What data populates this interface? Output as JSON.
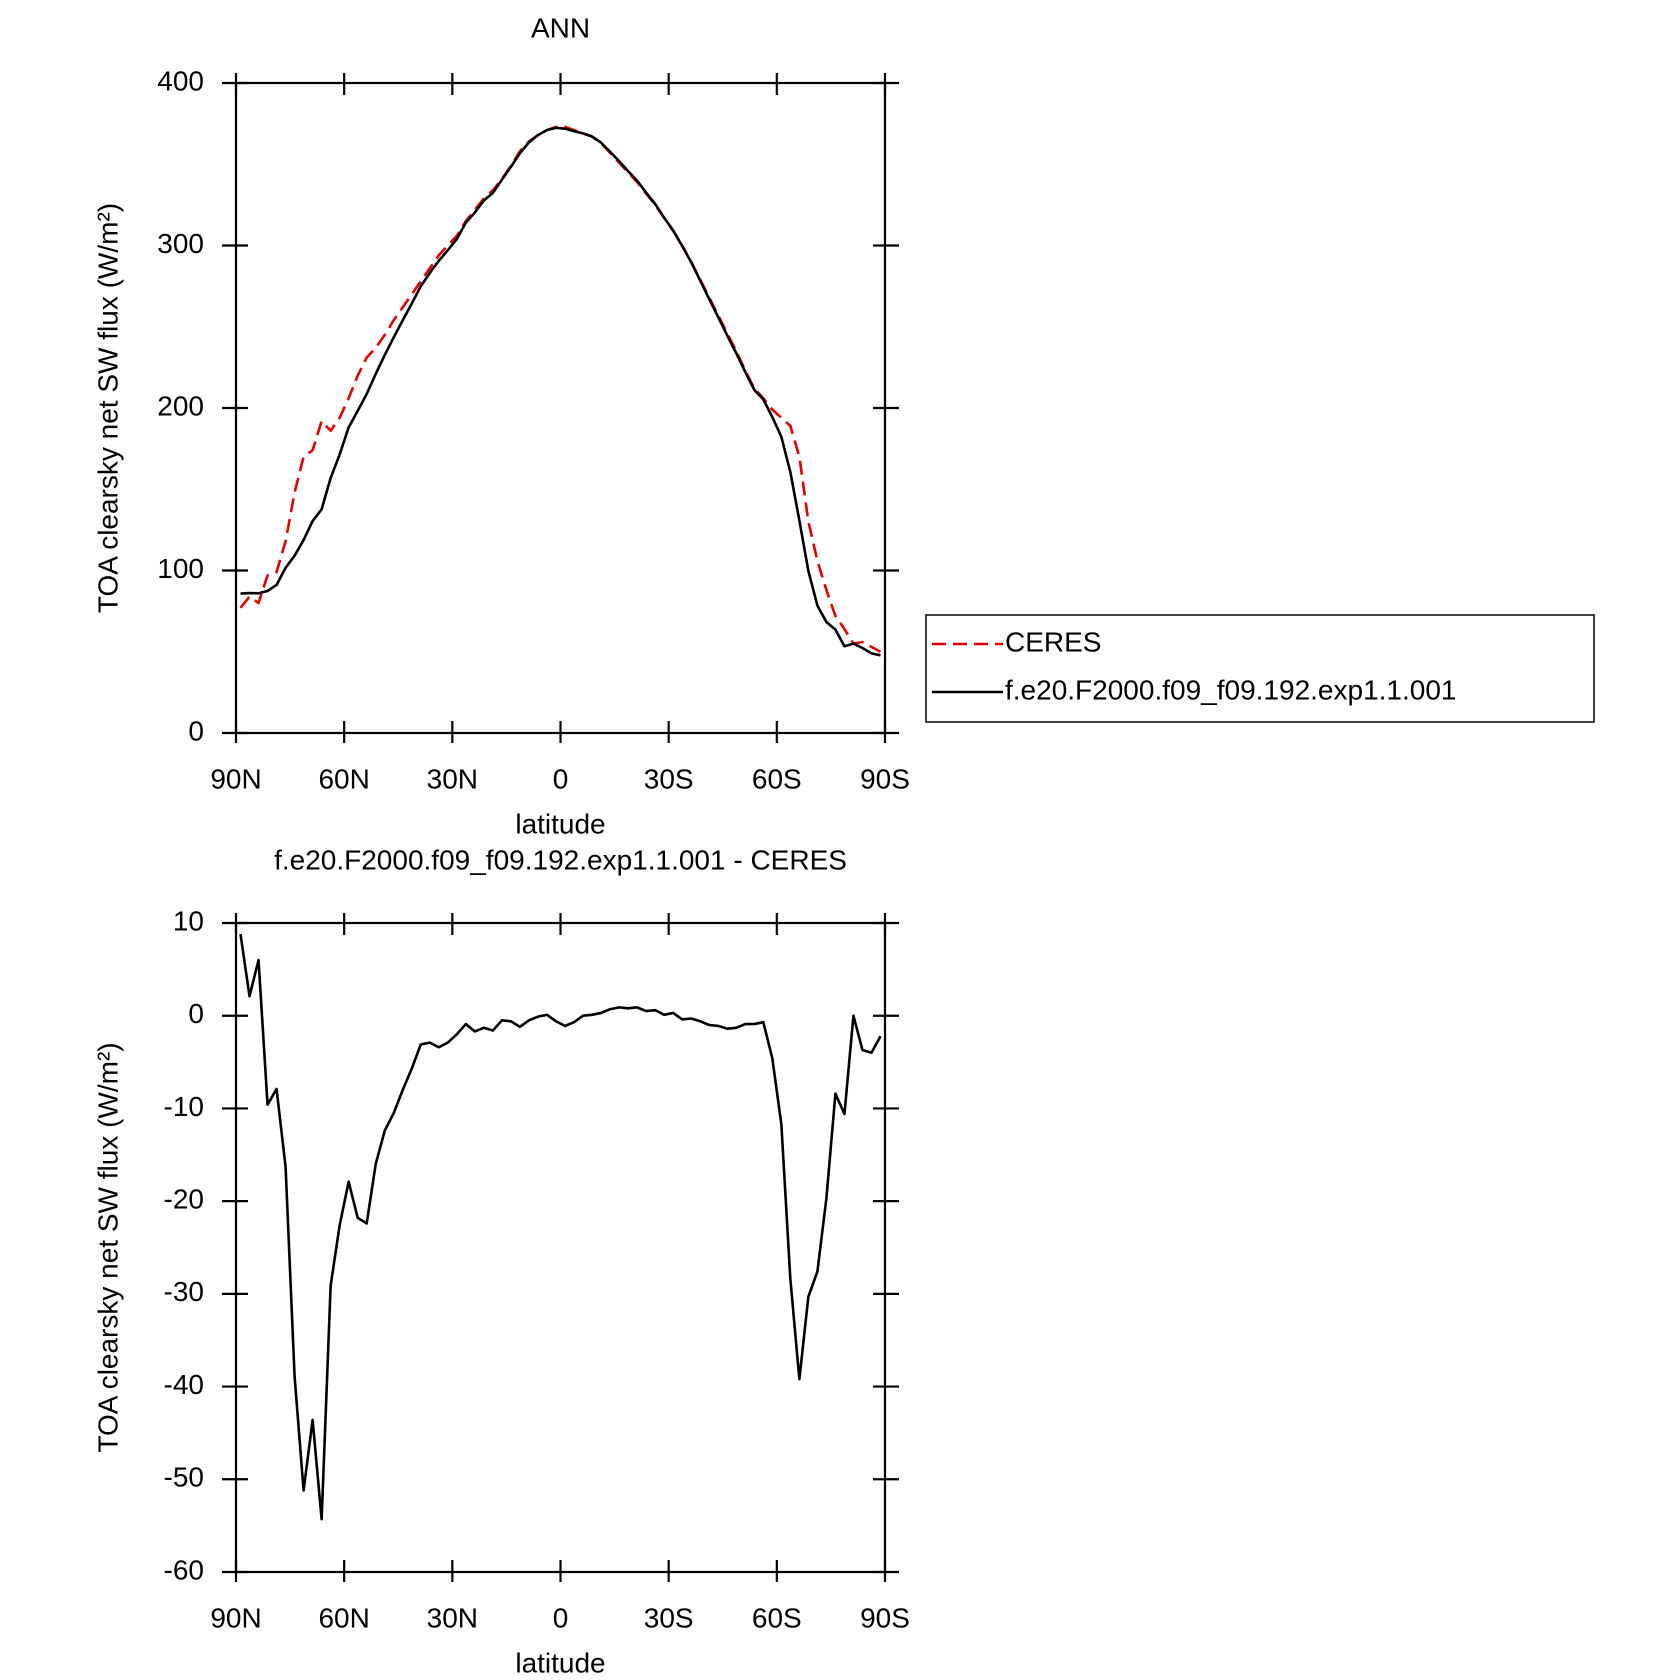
{
  "chart_data": [
    {
      "type": "line",
      "title": "ANN",
      "xlabel": "latitude",
      "ylabel": "TOA clearsky net SW flux (W/m²)",
      "xlim": [
        90,
        -90
      ],
      "ylim": [
        0,
        400
      ],
      "xticks": [
        {
          "value": 90,
          "label": "90N"
        },
        {
          "value": 60,
          "label": "60N"
        },
        {
          "value": 30,
          "label": "30N"
        },
        0,
        {
          "value": -30,
          "label": "30S"
        },
        {
          "value": -60,
          "label": "60S"
        },
        {
          "value": -90,
          "label": "90S"
        }
      ],
      "yticks": [
        0,
        100,
        200,
        300,
        400
      ],
      "legend": "right",
      "x": [
        88.75,
        86.25,
        83.75,
        81.25,
        78.75,
        76.25,
        73.75,
        71.25,
        68.75,
        66.25,
        63.75,
        61.25,
        58.75,
        56.25,
        53.75,
        51.25,
        48.75,
        46.25,
        43.75,
        41.25,
        38.75,
        36.25,
        33.75,
        31.25,
        28.75,
        26.25,
        23.75,
        21.25,
        18.75,
        16.25,
        13.75,
        11.25,
        8.75,
        6.25,
        3.75,
        1.25,
        -1.25,
        -3.75,
        -6.25,
        -8.75,
        -11.25,
        -13.75,
        -16.25,
        -18.75,
        -21.25,
        -23.75,
        -26.25,
        -28.75,
        -31.25,
        -33.75,
        -36.25,
        -38.75,
        -41.25,
        -43.75,
        -46.25,
        -48.75,
        -51.25,
        -53.75,
        -56.25,
        -58.75,
        -61.25,
        -63.75,
        -66.25,
        -68.75,
        -71.25,
        -73.75,
        -76.25,
        -78.75,
        -81.25,
        -83.75,
        -86.25,
        -88.75
      ],
      "series": [
        {
          "name": "CERES",
          "color": "#e00000",
          "dash": true,
          "values": [
            77,
            84,
            80,
            97,
            99,
            118,
            148,
            170,
            174,
            192,
            186,
            194,
            206,
            220,
            231,
            237,
            245,
            254,
            262,
            270,
            278,
            286,
            294,
            300,
            306,
            315,
            322,
            329,
            334,
            341,
            349,
            358,
            364,
            368,
            371,
            373,
            373,
            371,
            369,
            367,
            363,
            357,
            351,
            345,
            339,
            332,
            325,
            317,
            309,
            300,
            290,
            279,
            268,
            257,
            246,
            235,
            223,
            212,
            206,
            199,
            194,
            189,
            170,
            130,
            106,
            88,
            72,
            64,
            55,
            56,
            53,
            50
          ]
        },
        {
          "name": "f.e20.F2000.f09_f09.192.exp1.1.001",
          "color": "#000000",
          "dash": false,
          "values": [
            85.8,
            86.1,
            86,
            87.4,
            91.1,
            101.7,
            109.1,
            118.8,
            130.4,
            137.7,
            156.9,
            171.4,
            188.1,
            198.2,
            208.6,
            221,
            232.6,
            243.5,
            254,
            264.3,
            274.9,
            283.1,
            290.6,
            297.1,
            304,
            314.1,
            320.3,
            327.7,
            332.4,
            340.5,
            348.4,
            356.8,
            363.5,
            367.9,
            371.1,
            372.4,
            371.9,
            370.3,
            369,
            367.1,
            363.3,
            357.7,
            351.9,
            345.8,
            339.9,
            332.5,
            325.6,
            317.1,
            309.3,
            299.6,
            289.7,
            278.4,
            267,
            255.9,
            244.6,
            233.7,
            222.1,
            211.1,
            205.3,
            194.4,
            182.3,
            160.6,
            130.8,
            99.7,
            78.4,
            68.3,
            63.6,
            53.4,
            55,
            52.3,
            49,
            47.8
          ]
        }
      ]
    },
    {
      "type": "line",
      "title": "f.e20.F2000.f09_f09.192.exp1.1.001 - CERES",
      "xlabel": "latitude",
      "ylabel": "TOA clearsky net SW flux (W/m²)",
      "xlim": [
        90,
        -90
      ],
      "ylim": [
        -60,
        10
      ],
      "xticks": [
        {
          "value": 90,
          "label": "90N"
        },
        {
          "value": 60,
          "label": "60N"
        },
        {
          "value": 30,
          "label": "30N"
        },
        0,
        {
          "value": -30,
          "label": "30S"
        },
        {
          "value": -60,
          "label": "60S"
        },
        {
          "value": -90,
          "label": "90S"
        }
      ],
      "yticks": [
        -60,
        -50,
        -40,
        -30,
        -20,
        -10,
        0,
        10
      ],
      "x": [
        88.75,
        86.25,
        83.75,
        81.25,
        78.75,
        76.25,
        73.75,
        71.25,
        68.75,
        66.25,
        63.75,
        61.25,
        58.75,
        56.25,
        53.75,
        51.25,
        48.75,
        46.25,
        43.75,
        41.25,
        38.75,
        36.25,
        33.75,
        31.25,
        28.75,
        26.25,
        23.75,
        21.25,
        18.75,
        16.25,
        13.75,
        11.25,
        8.75,
        6.25,
        3.75,
        1.25,
        -1.25,
        -3.75,
        -6.25,
        -8.75,
        -11.25,
        -13.75,
        -16.25,
        -18.75,
        -21.25,
        -23.75,
        -26.25,
        -28.75,
        -31.25,
        -33.75,
        -36.25,
        -38.75,
        -41.25,
        -43.75,
        -46.25,
        -48.75,
        -51.25,
        -53.75,
        -56.25,
        -58.75,
        -61.25,
        -63.75,
        -66.25,
        -68.75,
        -71.25,
        -73.75,
        -76.25,
        -78.75,
        -81.25,
        -83.75,
        -86.25,
        -88.75
      ],
      "series": [
        {
          "color": "#000000",
          "dash": false,
          "values": [
            8.8,
            2.1,
            6,
            -9.6,
            -7.9,
            -16.3,
            -38.9,
            -51.2,
            -43.6,
            -54.3,
            -29.1,
            -22.6,
            -17.9,
            -21.8,
            -22.4,
            -16,
            -12.4,
            -10.5,
            -8,
            -5.7,
            -3.1,
            -2.9,
            -3.4,
            -2.9,
            -2,
            -0.9,
            -1.7,
            -1.3,
            -1.6,
            -0.5,
            -0.6,
            -1.2,
            -0.5,
            -0.1,
            0.1,
            -0.6,
            -1.1,
            -0.7,
            0,
            0.1,
            0.3,
            0.7,
            0.9,
            0.8,
            0.9,
            0.5,
            0.6,
            0.1,
            0.3,
            -0.4,
            -0.3,
            -0.6,
            -1,
            -1.1,
            -1.4,
            -1.3,
            -0.9,
            -0.9,
            -0.7,
            -4.6,
            -11.7,
            -28.4,
            -39.2,
            -30.3,
            -27.6,
            -19.7,
            -8.4,
            -10.6,
            0,
            -3.7,
            -4,
            -2.2
          ]
        }
      ]
    }
  ]
}
